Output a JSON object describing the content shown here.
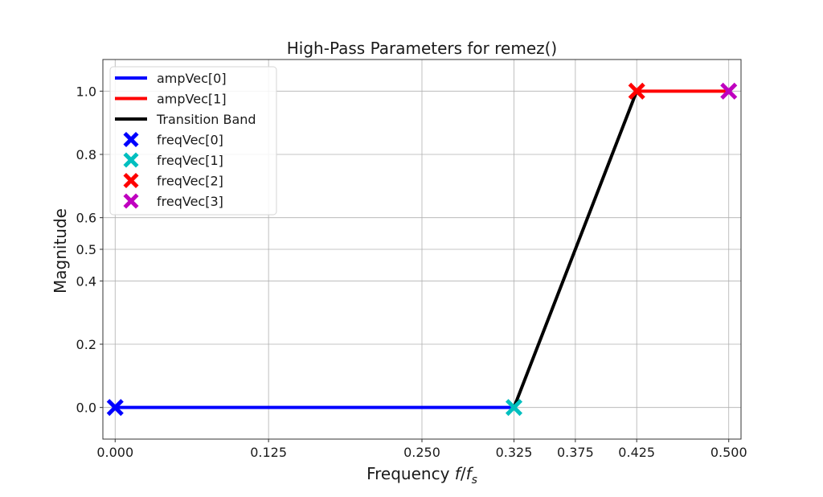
{
  "chart_data": {
    "type": "line",
    "title": "High-Pass Parameters for remez()",
    "xlabel": "Frequency f/f_s",
    "xlabel_parts": {
      "prefix": "Frequency ",
      "f": "f",
      "slash": "/",
      "fs": "f",
      "sub": "s"
    },
    "ylabel": "Magnitude",
    "xlim": [
      -0.01,
      0.51
    ],
    "ylim": [
      -0.1,
      1.1
    ],
    "grid": true,
    "legend_position": "upper left",
    "x_ticks": [
      0.0,
      0.125,
      0.25,
      0.325,
      0.375,
      0.425,
      0.5
    ],
    "x_tick_labels": [
      "0.000",
      "0.125",
      "0.250",
      "0.325",
      "0.375",
      "0.425",
      "0.500"
    ],
    "y_ticks": [
      0.0,
      0.2,
      0.4,
      0.5,
      0.6,
      0.8,
      1.0
    ],
    "y_tick_labels": [
      "0.0",
      "0.2",
      "0.4",
      "0.5",
      "0.6",
      "0.8",
      "1.0"
    ],
    "series": [
      {
        "name": "ampVec[0]",
        "kind": "line",
        "color": "#0000ff",
        "x": [
          0.0,
          0.325
        ],
        "y": [
          0.0,
          0.0
        ]
      },
      {
        "name": "ampVec[1]",
        "kind": "line",
        "color": "#ff0000",
        "x": [
          0.425,
          0.5
        ],
        "y": [
          1.0,
          1.0
        ]
      },
      {
        "name": "Transition Band",
        "kind": "line",
        "color": "#000000",
        "x": [
          0.325,
          0.425
        ],
        "y": [
          0.0,
          1.0
        ]
      },
      {
        "name": "freqVec[0]",
        "kind": "marker",
        "marker": "X",
        "color": "#0000ff",
        "x": [
          0.0
        ],
        "y": [
          0.0
        ]
      },
      {
        "name": "freqVec[1]",
        "kind": "marker",
        "marker": "X",
        "color": "#00bfbf",
        "x": [
          0.325
        ],
        "y": [
          0.0
        ]
      },
      {
        "name": "freqVec[2]",
        "kind": "marker",
        "marker": "X",
        "color": "#ff0000",
        "x": [
          0.425
        ],
        "y": [
          1.0
        ]
      },
      {
        "name": "freqVec[3]",
        "kind": "marker",
        "marker": "X",
        "color": "#bf00bf",
        "x": [
          0.5
        ],
        "y": [
          1.0
        ]
      }
    ]
  }
}
